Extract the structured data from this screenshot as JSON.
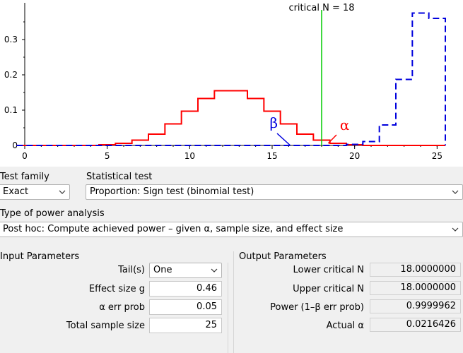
{
  "chart_data": {
    "type": "line",
    "critical_label": "critical N =  18",
    "critical_value": 18,
    "x_ticks": [
      "0",
      "5",
      "10",
      "15",
      "20",
      "25"
    ],
    "y_ticks": [
      "0",
      "0.1",
      "0.2",
      "0.3"
    ],
    "xlim": [
      0,
      25.5
    ],
    "ylim": [
      0,
      0.38
    ],
    "series": [
      {
        "name": "α",
        "color": "#ff0000",
        "dash": "solid",
        "x": [
          0,
          1,
          2,
          3,
          4,
          5,
          6,
          7,
          8,
          9,
          10,
          11,
          12,
          13,
          14,
          15,
          16,
          17,
          18,
          19,
          20,
          21,
          22,
          23,
          24,
          25
        ],
        "values": [
          0,
          0,
          0,
          0,
          0,
          0.002,
          0.006,
          0.015,
          0.032,
          0.061,
          0.097,
          0.133,
          0.155,
          0.155,
          0.133,
          0.097,
          0.061,
          0.032,
          0.015,
          0.006,
          0.002,
          0,
          0,
          0,
          0,
          0
        ]
      },
      {
        "name": "β",
        "color": "#0000dd",
        "dash": "dashed",
        "x": [
          0,
          1,
          2,
          3,
          4,
          5,
          6,
          7,
          8,
          9,
          10,
          11,
          12,
          13,
          14,
          15,
          16,
          17,
          18,
          19,
          20,
          21,
          22,
          23,
          24,
          25
        ],
        "values": [
          0,
          0,
          0,
          0,
          0,
          0,
          0,
          0,
          0,
          0,
          0,
          0,
          0,
          0,
          0,
          0,
          0,
          0,
          0,
          0,
          0.003,
          0.011,
          0.058,
          0.187,
          0.375,
          0.36
        ]
      }
    ],
    "annotations": [
      {
        "text": "β",
        "color": "#0000dd"
      },
      {
        "text": "α",
        "color": "#ff0000"
      }
    ],
    "grid": false
  },
  "test_family": {
    "label": "Test family",
    "value": "Exact"
  },
  "statistical_test": {
    "label": "Statistical test",
    "value": "Proportion: Sign test (binomial test)"
  },
  "power_analysis": {
    "label": "Type of power analysis",
    "value": "Post hoc: Compute achieved power – given α, sample size, and effect size"
  },
  "input": {
    "title": "Input Parameters",
    "tails_label": "Tail(s)",
    "tails_value": "One",
    "effect_label": "Effect size g",
    "effect_value": "0.46",
    "alpha_label": "α err prob",
    "alpha_value": "0.05",
    "n_label": "Total sample size",
    "n_value": "25"
  },
  "output": {
    "title": "Output Parameters",
    "lower_label": "Lower critical N",
    "lower_value": "18.0000000",
    "upper_label": "Upper critical N",
    "upper_value": "18.0000000",
    "power_label": "Power (1–β err prob)",
    "power_value": "0.9999962",
    "actual_alpha_label": "Actual α",
    "actual_alpha_value": "0.0216426"
  },
  "colors": {
    "alpha_curve": "#ff0000",
    "beta_curve": "#0000dd",
    "critical_line": "#00cc00"
  }
}
